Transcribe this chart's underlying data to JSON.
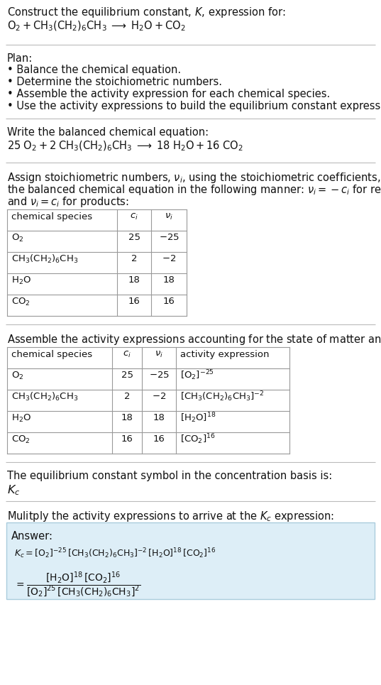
{
  "title": "Construct the equilibrium constant, $K$, expression for:",
  "unbalanced_eq": "$\\mathrm{O_2 + CH_3(CH_2)_6CH_3 \\;\\longrightarrow\\; H_2O + CO_2}$",
  "plan_header": "Plan:",
  "plan_items": [
    "Balance the chemical equation.",
    "Determine the stoichiometric numbers.",
    "Assemble the activity expression for each chemical species.",
    "Use the activity expressions to build the equilibrium constant expression."
  ],
  "balanced_label": "Write the balanced chemical equation:",
  "balanced_eq": "$\\mathrm{25\\;O_2 + 2\\;CH_3(CH_2)_6CH_3 \\;\\longrightarrow\\; 18\\;H_2O + 16\\;CO_2}$",
  "stoich_intro_1": "Assign stoichiometric numbers, $\\nu_i$, using the stoichiometric coefficients, $c_i$, from",
  "stoich_intro_2": "the balanced chemical equation in the following manner: $\\nu_i = -c_i$ for reactants",
  "stoich_intro_3": "and $\\nu_i = c_i$ for products:",
  "table1_col_headers": [
    "chemical species",
    "$c_i$",
    "$\\nu_i$"
  ],
  "table1_rows": [
    [
      "$\\mathrm{O_2}$",
      "25",
      "$-25$"
    ],
    [
      "$\\mathrm{CH_3(CH_2)_6CH_3}$",
      "2",
      "$-2$"
    ],
    [
      "$\\mathrm{H_2O}$",
      "18",
      "18"
    ],
    [
      "$\\mathrm{CO_2}$",
      "16",
      "16"
    ]
  ],
  "activity_intro": "Assemble the activity expressions accounting for the state of matter and $\\nu_i$:",
  "table2_col_headers": [
    "chemical species",
    "$c_i$",
    "$\\nu_i$",
    "activity expression"
  ],
  "table2_rows": [
    [
      "$\\mathrm{O_2}$",
      "25",
      "$-25$",
      "$[\\mathrm{O_2}]^{-25}$"
    ],
    [
      "$\\mathrm{CH_3(CH_2)_6CH_3}$",
      "2",
      "$-2$",
      "$[\\mathrm{CH_3(CH_2)_6CH_3}]^{-2}$"
    ],
    [
      "$\\mathrm{H_2O}$",
      "18",
      "18",
      "$[\\mathrm{H_2O}]^{18}$"
    ],
    [
      "$\\mathrm{CO_2}$",
      "16",
      "16",
      "$[\\mathrm{CO_2}]^{16}$"
    ]
  ],
  "kc_label": "The equilibrium constant symbol in the concentration basis is:",
  "kc_symbol": "$K_c$",
  "multiply_label": "Mulitply the activity expressions to arrive at the $K_c$ expression:",
  "answer_label": "Answer:",
  "kc_expr_line1": "$K_c = [\\mathrm{O_2}]^{-25}\\,[\\mathrm{CH_3(CH_2)_6CH_3}]^{-2}\\,[\\mathrm{H_2O}]^{18}\\,[\\mathrm{CO_2}]^{16}$",
  "kc_expr_frac": "$= \\dfrac{[\\mathrm{H_2O}]^{18}\\,[\\mathrm{CO_2}]^{16}}{[\\mathrm{O_2}]^{25}\\,[\\mathrm{CH_3(CH_2)_6CH_3}]^{2}}$",
  "bg_color": "#ffffff",
  "answer_bg": "#ddeef7",
  "answer_border": "#aaccdd",
  "table_line_color": "#999999",
  "sep_line_color": "#bbbbbb",
  "text_color": "#111111"
}
